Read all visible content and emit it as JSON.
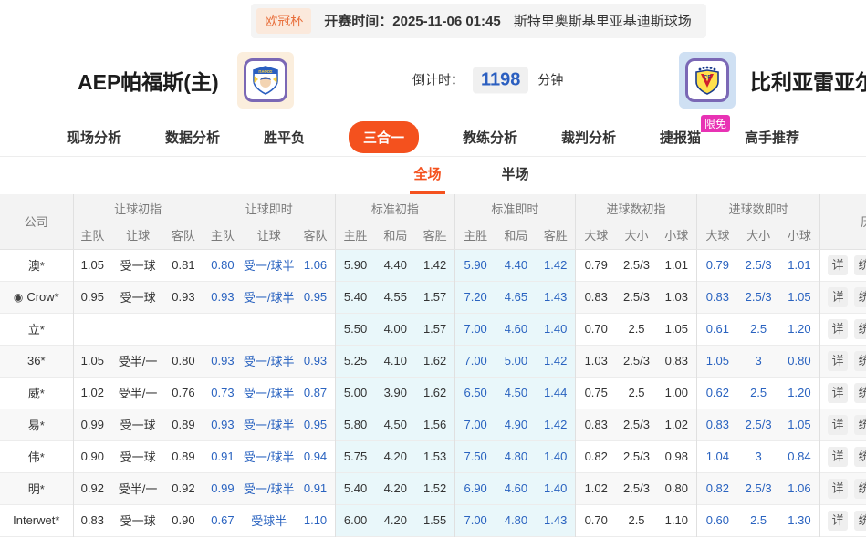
{
  "top_bar": {
    "league": "欧冠杯",
    "kickoff": "开赛时间：2025-11-06 01:45",
    "venue": "斯特里奥斯基里亚基迪斯球场"
  },
  "header": {
    "home_name": "AEP帕福斯(主)",
    "away_name": "比利亚雷亚尔",
    "countdown_label": "倒计时：",
    "countdown_value": "1198",
    "countdown_unit": "分钟"
  },
  "nav": {
    "items": [
      {
        "label": "现场分析",
        "active": false
      },
      {
        "label": "数据分析",
        "active": false
      },
      {
        "label": "胜平负",
        "active": false
      },
      {
        "label": "三合一",
        "active": true
      },
      {
        "label": "教练分析",
        "active": false
      },
      {
        "label": "裁判分析",
        "active": false
      },
      {
        "label": "捷报猫",
        "active": false,
        "badge": "限免"
      },
      {
        "label": "高手推荐",
        "active": false
      }
    ]
  },
  "sub_tabs": [
    {
      "label": "全场",
      "active": true
    },
    {
      "label": "半场",
      "active": false
    }
  ],
  "icons": {
    "crow": "◉"
  },
  "colors": {
    "accent": "#f4511e",
    "live_blue": "#2a63c0",
    "cyan_bg": "#e9f7fa",
    "badge_pink": "#e832b4"
  },
  "table": {
    "company_header": "公司",
    "groups": [
      "让球初指",
      "让球即时",
      "标准初指",
      "标准即时",
      "进球数初指",
      "进球数即时"
    ],
    "subcols": [
      "主队",
      "让球",
      "客队",
      "主队",
      "让球",
      "客队",
      "主胜",
      "和局",
      "客胜",
      "主胜",
      "和局",
      "客胜",
      "大球",
      "大小",
      "小球",
      "大球",
      "大小",
      "小球"
    ],
    "partial_header": "历",
    "detail_label": "详",
    "stats_label": "统",
    "rows": [
      {
        "company": "澳*",
        "icon": false,
        "h_init": [
          "1.05",
          "受一球",
          "0.81"
        ],
        "h_live": [
          "0.80",
          "受一/球半",
          "1.06"
        ],
        "s_init": [
          "5.90",
          "4.40",
          "1.42"
        ],
        "s_live": [
          "5.90",
          "4.40",
          "1.42"
        ],
        "g_init": [
          "0.79",
          "2.5/3",
          "1.01"
        ],
        "g_live": [
          "0.79",
          "2.5/3",
          "1.01"
        ]
      },
      {
        "company": "Crow*",
        "icon": true,
        "h_init": [
          "0.95",
          "受一球",
          "0.93"
        ],
        "h_live": [
          "0.93",
          "受一/球半",
          "0.95"
        ],
        "s_init": [
          "5.40",
          "4.55",
          "1.57"
        ],
        "s_live": [
          "7.20",
          "4.65",
          "1.43"
        ],
        "g_init": [
          "0.83",
          "2.5/3",
          "1.03"
        ],
        "g_live": [
          "0.83",
          "2.5/3",
          "1.05"
        ]
      },
      {
        "company": "立*",
        "icon": false,
        "h_init": [
          "",
          "",
          ""
        ],
        "h_live": [
          "",
          "",
          ""
        ],
        "s_init": [
          "5.50",
          "4.00",
          "1.57"
        ],
        "s_live": [
          "7.00",
          "4.60",
          "1.40"
        ],
        "g_init": [
          "0.70",
          "2.5",
          "1.05"
        ],
        "g_live": [
          "0.61",
          "2.5",
          "1.20"
        ]
      },
      {
        "company": "36*",
        "icon": false,
        "h_init": [
          "1.05",
          "受半/一",
          "0.80"
        ],
        "h_live": [
          "0.93",
          "受一/球半",
          "0.93"
        ],
        "s_init": [
          "5.25",
          "4.10",
          "1.62"
        ],
        "s_live": [
          "7.00",
          "5.00",
          "1.42"
        ],
        "g_init": [
          "1.03",
          "2.5/3",
          "0.83"
        ],
        "g_live": [
          "1.05",
          "3",
          "0.80"
        ]
      },
      {
        "company": "威*",
        "icon": false,
        "h_init": [
          "1.02",
          "受半/一",
          "0.76"
        ],
        "h_live": [
          "0.73",
          "受一/球半",
          "0.87"
        ],
        "s_init": [
          "5.00",
          "3.90",
          "1.62"
        ],
        "s_live": [
          "6.50",
          "4.50",
          "1.44"
        ],
        "g_init": [
          "0.75",
          "2.5",
          "1.00"
        ],
        "g_live": [
          "0.62",
          "2.5",
          "1.20"
        ]
      },
      {
        "company": "易*",
        "icon": false,
        "h_init": [
          "0.99",
          "受一球",
          "0.89"
        ],
        "h_live": [
          "0.93",
          "受一/球半",
          "0.95"
        ],
        "s_init": [
          "5.80",
          "4.50",
          "1.56"
        ],
        "s_live": [
          "7.00",
          "4.90",
          "1.42"
        ],
        "g_init": [
          "0.83",
          "2.5/3",
          "1.02"
        ],
        "g_live": [
          "0.83",
          "2.5/3",
          "1.05"
        ]
      },
      {
        "company": "伟*",
        "icon": false,
        "h_init": [
          "0.90",
          "受一球",
          "0.89"
        ],
        "h_live": [
          "0.91",
          "受一/球半",
          "0.94"
        ],
        "s_init": [
          "5.75",
          "4.20",
          "1.53"
        ],
        "s_live": [
          "7.50",
          "4.80",
          "1.40"
        ],
        "g_init": [
          "0.82",
          "2.5/3",
          "0.98"
        ],
        "g_live": [
          "1.04",
          "3",
          "0.84"
        ]
      },
      {
        "company": "明*",
        "icon": false,
        "h_init": [
          "0.92",
          "受半/一",
          "0.92"
        ],
        "h_live": [
          "0.99",
          "受一/球半",
          "0.91"
        ],
        "s_init": [
          "5.40",
          "4.20",
          "1.52"
        ],
        "s_live": [
          "6.90",
          "4.60",
          "1.40"
        ],
        "g_init": [
          "1.02",
          "2.5/3",
          "0.80"
        ],
        "g_live": [
          "0.82",
          "2.5/3",
          "1.06"
        ]
      },
      {
        "company": "Interwet*",
        "icon": false,
        "h_init": [
          "0.83",
          "受一球",
          "0.90"
        ],
        "h_live": [
          "0.67",
          "受球半",
          "1.10"
        ],
        "s_init": [
          "6.00",
          "4.20",
          "1.55"
        ],
        "s_live": [
          "7.00",
          "4.80",
          "1.43"
        ],
        "g_init": [
          "0.70",
          "2.5",
          "1.10"
        ],
        "g_live": [
          "0.60",
          "2.5",
          "1.30"
        ]
      }
    ]
  }
}
